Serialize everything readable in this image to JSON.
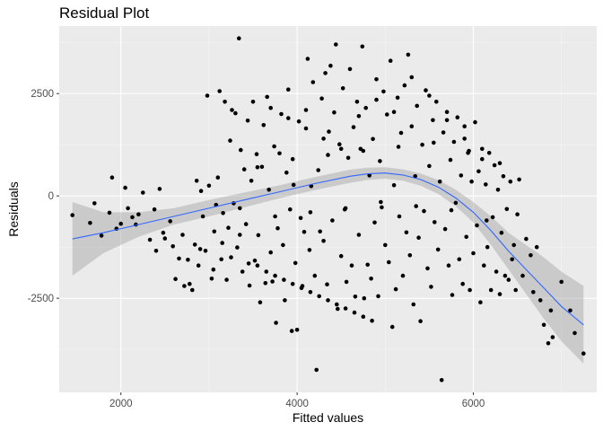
{
  "chart_data": {
    "type": "scatter",
    "title": "Residual Plot",
    "xlabel": "Fitted values",
    "ylabel": "Residuals",
    "xlim": [
      1300,
      7400
    ],
    "ylim": [
      -4800,
      4150
    ],
    "x_ticks": [
      2000,
      4000,
      6000
    ],
    "y_ticks": [
      -2500,
      0,
      2500
    ],
    "x_tick_labels": [
      "2000",
      "4000",
      "6000"
    ],
    "y_tick_labels": [
      "-2500",
      "0",
      "2500"
    ],
    "grid": true,
    "legend": "none",
    "colors": {
      "panel": "#ebebeb",
      "grid_major": "#ffffff",
      "points": "#000000",
      "smooth_line": "#3366ff",
      "ribbon": "#999999"
    },
    "points": [
      [
        1450,
        -470
      ],
      [
        1650,
        -660
      ],
      [
        1700,
        -180
      ],
      [
        1780,
        -970
      ],
      [
        1870,
        -410
      ],
      [
        1900,
        450
      ],
      [
        1950,
        -800
      ],
      [
        2000,
        -680
      ],
      [
        2050,
        200
      ],
      [
        2080,
        -300
      ],
      [
        2130,
        -520
      ],
      [
        2170,
        -700
      ],
      [
        2200,
        -450
      ],
      [
        2250,
        80
      ],
      [
        2330,
        -1070
      ],
      [
        2380,
        -330
      ],
      [
        2400,
        -1340
      ],
      [
        2440,
        170
      ],
      [
        2480,
        -900
      ],
      [
        2500,
        -1040
      ],
      [
        2560,
        -620
      ],
      [
        2590,
        -1230
      ],
      [
        2620,
        -2030
      ],
      [
        2660,
        -1530
      ],
      [
        2700,
        -950
      ],
      [
        2720,
        -2200
      ],
      [
        2760,
        -1560
      ],
      [
        2780,
        -2150
      ],
      [
        2810,
        -2300
      ],
      [
        2840,
        -1190
      ],
      [
        2860,
        370
      ],
      [
        2880,
        -1700
      ],
      [
        2910,
        120
      ],
      [
        2930,
        -500
      ],
      [
        2960,
        -1340
      ],
      [
        2980,
        2450
      ],
      [
        3000,
        250
      ],
      [
        3030,
        -2020
      ],
      [
        3060,
        -870
      ],
      [
        3080,
        -220
      ],
      [
        3100,
        450
      ],
      [
        3120,
        2560
      ],
      [
        3140,
        -1550
      ],
      [
        3160,
        -420
      ],
      [
        3180,
        2300
      ],
      [
        3200,
        -2050
      ],
      [
        3220,
        -780
      ],
      [
        3240,
        1350
      ],
      [
        3260,
        2100
      ],
      [
        3280,
        -180
      ],
      [
        3300,
        2020
      ],
      [
        3320,
        -1260
      ],
      [
        3340,
        3850
      ],
      [
        3360,
        1120
      ],
      [
        3380,
        -1850
      ],
      [
        3400,
        650
      ],
      [
        3420,
        -690
      ],
      [
        3440,
        1840
      ],
      [
        3460,
        -2190
      ],
      [
        3480,
        370
      ],
      [
        3500,
        2300
      ],
      [
        3520,
        -1580
      ],
      [
        3540,
        1020
      ],
      [
        3560,
        -960
      ],
      [
        3580,
        -2600
      ],
      [
        3600,
        710
      ],
      [
        3620,
        1730
      ],
      [
        3640,
        -2130
      ],
      [
        3660,
        2420
      ],
      [
        3680,
        150
      ],
      [
        3700,
        -1380
      ],
      [
        3720,
        -2090
      ],
      [
        3740,
        1210
      ],
      [
        3760,
        -3100
      ],
      [
        3780,
        -790
      ],
      [
        3800,
        1040
      ],
      [
        3820,
        2000
      ],
      [
        3840,
        -1200
      ],
      [
        3860,
        -2550
      ],
      [
        3880,
        570
      ],
      [
        3900,
        2600
      ],
      [
        3920,
        -330
      ],
      [
        3940,
        -3300
      ],
      [
        3960,
        270
      ],
      [
        3980,
        -1640
      ],
      [
        4000,
        -3270
      ],
      [
        4020,
        1820
      ],
      [
        4040,
        -540
      ],
      [
        4060,
        -2200
      ],
      [
        4080,
        -880
      ],
      [
        4100,
        2100
      ],
      [
        4120,
        3350
      ],
      [
        4140,
        -1320
      ],
      [
        4160,
        240
      ],
      [
        4180,
        2780
      ],
      [
        4200,
        -1950
      ],
      [
        4220,
        -4250
      ],
      [
        4240,
        630
      ],
      [
        4260,
        -870
      ],
      [
        4280,
        2380
      ],
      [
        4300,
        -1100
      ],
      [
        4320,
        3000
      ],
      [
        4340,
        -2160
      ],
      [
        4360,
        1570
      ],
      [
        4380,
        3180
      ],
      [
        4400,
        -600
      ],
      [
        4420,
        2040
      ],
      [
        4440,
        3700
      ],
      [
        4460,
        -2760
      ],
      [
        4480,
        1260
      ],
      [
        4500,
        -1470
      ],
      [
        4520,
        2630
      ],
      [
        4540,
        -330
      ],
      [
        4560,
        -2100
      ],
      [
        4580,
        930
      ],
      [
        4600,
        3100
      ],
      [
        4620,
        -1700
      ],
      [
        4640,
        1680
      ],
      [
        4660,
        -2460
      ],
      [
        4680,
        2300
      ],
      [
        4700,
        -950
      ],
      [
        4720,
        1150
      ],
      [
        4740,
        3650
      ],
      [
        4760,
        -2500
      ],
      [
        4780,
        2150
      ],
      [
        4800,
        -1680
      ],
      [
        4820,
        500
      ],
      [
        4840,
        -2020
      ],
      [
        4860,
        1390
      ],
      [
        4880,
        -650
      ],
      [
        4900,
        2850
      ],
      [
        4920,
        -2450
      ],
      [
        4940,
        850
      ],
      [
        4960,
        -280
      ],
      [
        4980,
        2550
      ],
      [
        5000,
        -1200
      ],
      [
        5020,
        1990
      ],
      [
        5040,
        -1620
      ],
      [
        5060,
        3300
      ],
      [
        5080,
        -3200
      ],
      [
        5100,
        260
      ],
      [
        5120,
        -2280
      ],
      [
        5140,
        2400
      ],
      [
        5160,
        -500
      ],
      [
        5180,
        1540
      ],
      [
        5200,
        -1950
      ],
      [
        5220,
        2700
      ],
      [
        5240,
        -890
      ],
      [
        5260,
        3450
      ],
      [
        5280,
        -1450
      ],
      [
        5300,
        1700
      ],
      [
        5320,
        -2650
      ],
      [
        5340,
        480
      ],
      [
        5360,
        2200
      ],
      [
        5380,
        -1020
      ],
      [
        5400,
        -3060
      ],
      [
        5420,
        1250
      ],
      [
        5440,
        -370
      ],
      [
        5460,
        2580
      ],
      [
        5480,
        -1770
      ],
      [
        5500,
        730
      ],
      [
        5520,
        -2220
      ],
      [
        5540,
        1850
      ],
      [
        5560,
        -640
      ],
      [
        5580,
        2300
      ],
      [
        5600,
        -1310
      ],
      [
        5620,
        350
      ],
      [
        5640,
        -4500
      ],
      [
        5660,
        1550
      ],
      [
        5680,
        -810
      ],
      [
        5700,
        2050
      ],
      [
        5720,
        -1700
      ],
      [
        5740,
        880
      ],
      [
        5760,
        -2420
      ],
      [
        5780,
        1320
      ],
      [
        5800,
        -170
      ],
      [
        5820,
        1920
      ],
      [
        5840,
        -1550
      ],
      [
        5860,
        500
      ],
      [
        5880,
        -2150
      ],
      [
        5900,
        1700
      ],
      [
        5920,
        -1000
      ],
      [
        5940,
        1050
      ],
      [
        5960,
        -2300
      ],
      [
        5980,
        350
      ],
      [
        6000,
        -1400
      ],
      [
        6020,
        1800
      ],
      [
        6040,
        -720
      ],
      [
        6060,
        600
      ],
      [
        6080,
        -2600
      ],
      [
        6100,
        1150
      ],
      [
        6120,
        -1700
      ],
      [
        6140,
        280
      ],
      [
        6160,
        -1250
      ],
      [
        6180,
        1050
      ],
      [
        6200,
        -2300
      ],
      [
        6220,
        -520
      ],
      [
        6240,
        750
      ],
      [
        6260,
        -1850
      ],
      [
        6280,
        150
      ],
      [
        6300,
        -2400
      ],
      [
        6320,
        -900
      ],
      [
        6340,
        480
      ],
      [
        6360,
        -1950
      ],
      [
        6380,
        -320
      ],
      [
        6400,
        -2050
      ],
      [
        6420,
        350
      ],
      [
        6440,
        -1550
      ],
      [
        6460,
        -1200
      ],
      [
        6480,
        -2300
      ],
      [
        6500,
        -450
      ],
      [
        6520,
        400
      ],
      [
        6560,
        -1950
      ],
      [
        6600,
        -1050
      ],
      [
        6650,
        -1450
      ],
      [
        6680,
        -2350
      ],
      [
        6720,
        -1250
      ],
      [
        6760,
        -2550
      ],
      [
        6800,
        -3150
      ],
      [
        6850,
        -3600
      ],
      [
        6880,
        -2800
      ],
      [
        6900,
        -3450
      ],
      [
        7000,
        -2100
      ],
      [
        7100,
        -2800
      ],
      [
        7150,
        -3350
      ],
      [
        7250,
        -3850
      ],
      [
        2900,
        -1300
      ],
      [
        3050,
        -1800
      ],
      [
        3150,
        -1150
      ],
      [
        3250,
        -1500
      ],
      [
        3350,
        -950
      ],
      [
        3450,
        -1650
      ],
      [
        3550,
        -1700
      ],
      [
        3650,
        -1850
      ],
      [
        3750,
        -1950
      ],
      [
        3850,
        -2050
      ],
      [
        3950,
        -2150
      ],
      [
        4050,
        -2250
      ],
      [
        4150,
        -2350
      ],
      [
        4250,
        -2450
      ],
      [
        4350,
        -2550
      ],
      [
        4450,
        -2650
      ],
      [
        4550,
        -2750
      ],
      [
        4650,
        -2850
      ],
      [
        4750,
        -2950
      ],
      [
        4850,
        -3050
      ],
      [
        3350,
        -300
      ],
      [
        3550,
        700
      ],
      [
        3750,
        -500
      ],
      [
        3950,
        900
      ],
      [
        4150,
        -400
      ],
      [
        4350,
        1000
      ],
      [
        4550,
        -300
      ],
      [
        4750,
        1100
      ],
      [
        4950,
        -150
      ],
      [
        5150,
        1200
      ],
      [
        5350,
        -250
      ],
      [
        5550,
        1300
      ],
      [
        5750,
        -350
      ],
      [
        5950,
        1100
      ],
      [
        6150,
        -600
      ],
      [
        3700,
        2150
      ],
      [
        3900,
        1900
      ],
      [
        4100,
        1650
      ],
      [
        4300,
        1400
      ],
      [
        4500,
        1150
      ],
      [
        4700,
        1950
      ],
      [
        4900,
        2350
      ],
      [
        5100,
        2050
      ],
      [
        5300,
        2900
      ],
      [
        5500,
        2450
      ],
      [
        5700,
        1850
      ],
      [
        5900,
        1400
      ],
      [
        6100,
        900
      ],
      [
        6300,
        800
      ]
    ],
    "smooth": {
      "x": [
        1450,
        1800,
        2200,
        2600,
        3000,
        3400,
        3800,
        4200,
        4600,
        4800,
        5000,
        5200,
        5400,
        5600,
        5800,
        6000,
        6200,
        6400,
        6600,
        6800,
        7000,
        7250
      ],
      "y": [
        -1050,
        -900,
        -700,
        -500,
        -300,
        -100,
        100,
        300,
        480,
        540,
        560,
        510,
        400,
        220,
        -50,
        -400,
        -850,
        -1350,
        -1800,
        -2250,
        -2700,
        -3150
      ],
      "lower": [
        -1950,
        -1400,
        -1000,
        -700,
        -500,
        -280,
        -60,
        140,
        320,
        390,
        420,
        370,
        250,
        50,
        -250,
        -650,
        -1200,
        -1800,
        -2400,
        -3000,
        -3550,
        -4100
      ],
      "upper": [
        -150,
        -400,
        -400,
        -300,
        -100,
        80,
        260,
        460,
        640,
        690,
        700,
        650,
        550,
        390,
        150,
        -150,
        -500,
        -900,
        -1200,
        -1500,
        -1850,
        -2200
      ]
    }
  }
}
